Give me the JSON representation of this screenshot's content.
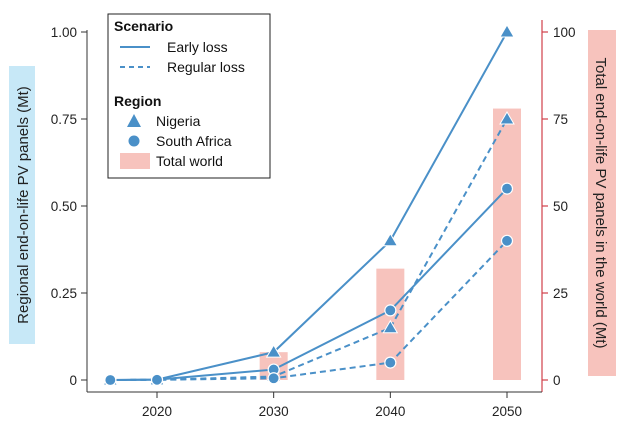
{
  "chart_data": {
    "type": "line",
    "x": [
      2016,
      2020,
      2030,
      2040,
      2050
    ],
    "xticks": [
      "2020",
      "2030",
      "2040",
      "2050"
    ],
    "xtick_values": [
      2020,
      2030,
      2040,
      2050
    ],
    "xlim": [
      2014,
      2053
    ],
    "ylabel_left": "Regional end-on-life PV panels (Mt)",
    "ylabel_right": "Total end-on-life PV panels in the world (Mt)",
    "yticks_left": [
      "0",
      "0.25",
      "0.50",
      "0.75",
      "1.00"
    ],
    "ytick_values_left": [
      0,
      0.25,
      0.5,
      0.75,
      1.0
    ],
    "ylim_left": [
      0,
      1.0
    ],
    "yticks_right": [
      "0",
      "25",
      "50",
      "75",
      "100"
    ],
    "ytick_values_right": [
      0,
      25,
      50,
      75,
      100
    ],
    "ylim_right": [
      0,
      100
    ],
    "series": [
      {
        "scenario": "Early loss",
        "region": "Nigeria",
        "values": [
          0,
          0.001,
          0.08,
          0.4,
          1.0
        ]
      },
      {
        "scenario": "Regular loss",
        "region": "Nigeria",
        "values": [
          0,
          0.0005,
          0.01,
          0.15,
          0.75
        ]
      },
      {
        "scenario": "Early loss",
        "region": "South Africa",
        "values": [
          0,
          0.001,
          0.03,
          0.2,
          0.55
        ]
      },
      {
        "scenario": "Regular loss",
        "region": "South Africa",
        "values": [
          0,
          0.0005,
          0.005,
          0.05,
          0.4
        ]
      }
    ],
    "total_world_bars": {
      "x": [
        2030,
        2040,
        2050
      ],
      "values": [
        8,
        32,
        78
      ]
    },
    "legend": {
      "scenario_title": "Scenario",
      "scenario_items": [
        "Early loss",
        "Regular loss"
      ],
      "region_title": "Region",
      "region_items": [
        "Nigeria",
        "South Africa",
        "Total world"
      ],
      "placement": "top-left"
    },
    "colors": {
      "line": "#4a90c8",
      "bar": "#f7c3bd",
      "left_label_bg": "#c7e8f7",
      "right_label_bg": "#f7c3bd",
      "right_axis": "#d0404a"
    }
  }
}
